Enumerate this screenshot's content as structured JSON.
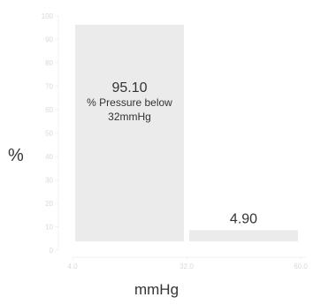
{
  "chart_data": {
    "type": "bar",
    "xlabel": "mmHg",
    "ylabel": "%",
    "ylim": [
      0,
      100
    ],
    "y_ticks": [
      0,
      10,
      20,
      30,
      40,
      50,
      60,
      70,
      80,
      90,
      100
    ],
    "x_ticks": [
      "4.0",
      "32.0",
      "60.0"
    ],
    "xlim": [
      4,
      60
    ],
    "grid": false,
    "bars": [
      {
        "x_start": 4,
        "x_end": 32,
        "value": 95.1,
        "value_label": "95.10",
        "caption": [
          "% Pressure below",
          "32mmHg"
        ]
      },
      {
        "x_start": 32,
        "x_end": 60,
        "value": 4.9,
        "value_label": "4.90",
        "caption": []
      }
    ],
    "colors": {
      "bar": "#ebebeb",
      "axis_line": "#f0f0f0",
      "tick_text": "#d9d9d9",
      "text": "#333333"
    }
  }
}
